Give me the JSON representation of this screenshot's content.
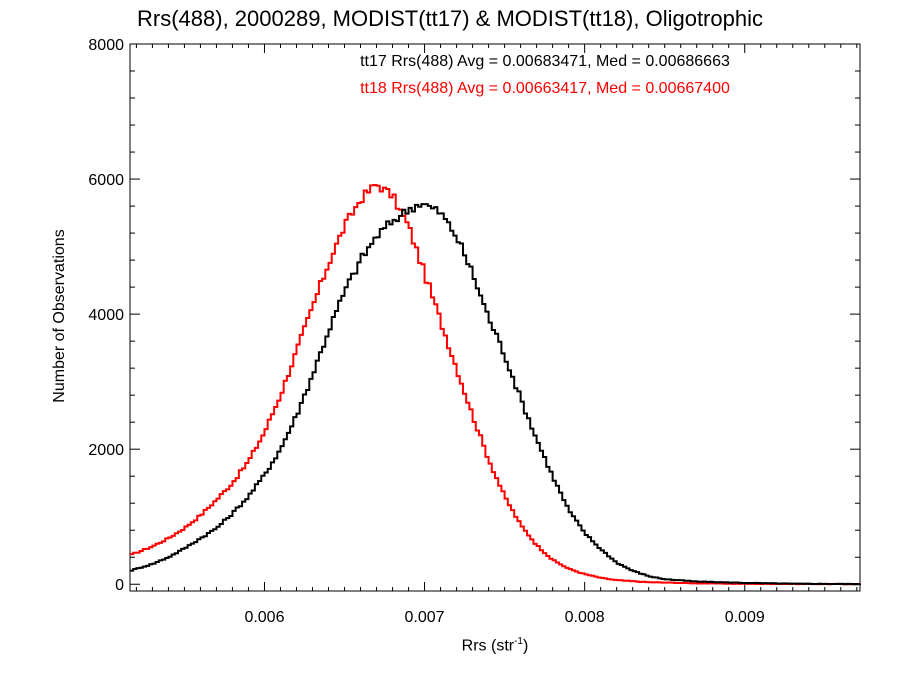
{
  "chart_data": {
    "type": "line",
    "title": "Rrs(488), 2000289, MODIST(tt17) & MODIST(tt18), Oligotrophic",
    "xlabel_main": "Rrs (str",
    "xlabel_sup": "-1",
    "xlabel_close": ")",
    "ylabel": "Number of Observations",
    "xlim": [
      0.00516,
      0.00972
    ],
    "ylim": [
      -100,
      8000
    ],
    "x_ticks": [
      "0.006",
      "0.007",
      "0.008",
      "0.009"
    ],
    "x_tick_values": [
      0.006,
      0.007,
      0.008,
      0.009
    ],
    "y_ticks": [
      "0",
      "2000",
      "4000",
      "6000",
      "8000"
    ],
    "y_tick_values": [
      0,
      2000,
      4000,
      6000,
      8000
    ],
    "annotations": [
      "tt17 Rrs(488) Avg = 0.00683471, Med = 0.00686663",
      "tt18 Rrs(488) Avg = 0.00663417, Med = 0.00667400"
    ],
    "series": [
      {
        "name": "tt17",
        "color": "#000000",
        "points": [
          [
            0.00516,
            200
          ],
          [
            0.0053,
            300
          ],
          [
            0.0054,
            400
          ],
          [
            0.0055,
            530
          ],
          [
            0.0056,
            680
          ],
          [
            0.0057,
            830
          ],
          [
            0.0058,
            1050
          ],
          [
            0.0059,
            1300
          ],
          [
            0.006,
            1620
          ],
          [
            0.0061,
            2000
          ],
          [
            0.0062,
            2500
          ],
          [
            0.0063,
            3100
          ],
          [
            0.0064,
            3750
          ],
          [
            0.0065,
            4330
          ],
          [
            0.0066,
            4800
          ],
          [
            0.0067,
            5150
          ],
          [
            0.0068,
            5380
          ],
          [
            0.0069,
            5550
          ],
          [
            0.00698,
            5650
          ],
          [
            0.0071,
            5500
          ],
          [
            0.0072,
            5150
          ],
          [
            0.0073,
            4600
          ],
          [
            0.0074,
            3950
          ],
          [
            0.0075,
            3400
          ],
          [
            0.0076,
            2750
          ],
          [
            0.0077,
            2150
          ],
          [
            0.0078,
            1600
          ],
          [
            0.0079,
            1100
          ],
          [
            0.008,
            760
          ],
          [
            0.0081,
            520
          ],
          [
            0.0082,
            320
          ],
          [
            0.0083,
            200
          ],
          [
            0.0084,
            120
          ],
          [
            0.0085,
            75
          ],
          [
            0.0087,
            40
          ],
          [
            0.009,
            20
          ],
          [
            0.0093,
            8
          ],
          [
            0.00972,
            3
          ]
        ]
      },
      {
        "name": "tt18",
        "color": "#ff0000",
        "points": [
          [
            0.00516,
            430
          ],
          [
            0.0053,
            560
          ],
          [
            0.0054,
            680
          ],
          [
            0.0055,
            830
          ],
          [
            0.0056,
            1020
          ],
          [
            0.0057,
            1250
          ],
          [
            0.0058,
            1500
          ],
          [
            0.0059,
            1820
          ],
          [
            0.006,
            2250
          ],
          [
            0.0061,
            2800
          ],
          [
            0.0062,
            3450
          ],
          [
            0.0063,
            4100
          ],
          [
            0.0064,
            4750
          ],
          [
            0.0065,
            5300
          ],
          [
            0.0066,
            5700
          ],
          [
            0.0067,
            5930
          ],
          [
            0.0068,
            5750
          ],
          [
            0.0069,
            5300
          ],
          [
            0.007,
            4600
          ],
          [
            0.0071,
            3900
          ],
          [
            0.0072,
            3200
          ],
          [
            0.0073,
            2500
          ],
          [
            0.0074,
            1850
          ],
          [
            0.0075,
            1300
          ],
          [
            0.0076,
            880
          ],
          [
            0.0077,
            580
          ],
          [
            0.0078,
            360
          ],
          [
            0.0079,
            230
          ],
          [
            0.008,
            150
          ],
          [
            0.0081,
            95
          ],
          [
            0.0082,
            60
          ],
          [
            0.0084,
            30
          ],
          [
            0.0087,
            14
          ],
          [
            0.009,
            6
          ],
          [
            0.00972,
            2
          ]
        ]
      }
    ]
  }
}
